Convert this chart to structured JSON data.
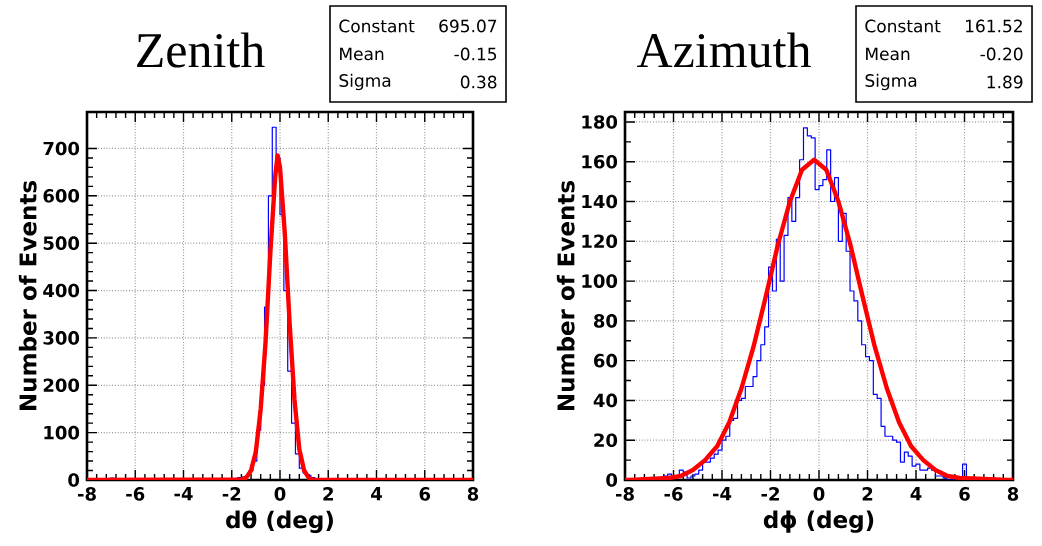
{
  "chart_data": [
    {
      "type": "histogram",
      "title": "Zenith",
      "xlabel": "dθ (deg)",
      "ylabel": "Number of Events",
      "bins": [
        -8,
        -7.84,
        -7.68,
        -7.52,
        -7.36,
        -7.2,
        -7.04,
        -6.88,
        -6.72,
        -6.56,
        -6.4,
        -6.24,
        -6.08,
        -5.92,
        -5.76,
        -5.6,
        -5.44,
        -5.28,
        -5.12,
        -4.96,
        -4.8,
        -4.64,
        -4.48,
        -4.32,
        -4.16,
        -4,
        -3.84,
        -3.68,
        -3.52,
        -3.36,
        -3.2,
        -3.04,
        -2.88,
        -2.72,
        -2.56,
        -2.4,
        -2.24,
        -2.08,
        -1.92,
        -1.76,
        -1.6,
        -1.44,
        -1.28,
        -1.12,
        -0.96,
        -0.8,
        -0.64,
        -0.48,
        -0.32,
        -0.16,
        0,
        0.16,
        0.32,
        0.48,
        0.64,
        0.8,
        0.96,
        1.12,
        1.28,
        1.44,
        1.6,
        1.76,
        1.92,
        2.08,
        2.24,
        2.4,
        2.56,
        2.72,
        2.88,
        3.04,
        3.2,
        3.36,
        3.52,
        3.68,
        3.84,
        4,
        4.16,
        4.32,
        4.48,
        4.64,
        4.8,
        4.96,
        5.12,
        5.28,
        5.44,
        5.6,
        5.76,
        5.92,
        6.08,
        6.24,
        6.4,
        6.56,
        6.72,
        6.88,
        7.04,
        7.2,
        7.36,
        7.52,
        7.68,
        7.84,
        8
      ],
      "values": [
        0,
        0,
        0,
        0,
        0,
        0,
        4,
        0,
        0,
        0,
        0,
        0,
        0,
        0,
        0,
        0,
        0,
        0,
        0,
        0,
        0,
        0,
        0,
        0,
        0,
        0,
        0,
        0,
        0,
        0,
        0,
        0,
        0,
        0,
        0,
        0,
        0,
        0,
        3,
        5,
        6,
        8,
        20,
        40,
        105,
        200,
        365,
        600,
        745,
        680,
        560,
        400,
        230,
        120,
        55,
        25,
        15,
        10,
        5,
        2,
        0,
        0,
        0,
        0,
        0,
        0,
        0,
        0,
        0,
        0,
        0,
        0,
        0,
        0,
        0,
        0,
        0,
        0,
        0,
        0,
        0,
        0,
        0,
        0,
        0,
        0,
        0,
        0,
        0,
        0,
        0,
        0,
        0,
        0,
        0,
        0,
        0,
        0,
        0,
        0
      ],
      "color": "#0000ff",
      "series": [
        {
          "type": "line",
          "color": "#ff0000",
          "x": [
            -8,
            -1.6,
            -1.4,
            -1.2,
            -1.0,
            -0.8,
            -0.6,
            -0.4,
            -0.2,
            -0.1,
            0,
            0.2,
            0.4,
            0.6,
            0.8,
            1.0,
            1.2,
            1.4,
            8
          ],
          "values": [
            0,
            1,
            5,
            20,
            60,
            150,
            290,
            480,
            640,
            685,
            660,
            520,
            330,
            170,
            65,
            20,
            4,
            0,
            0
          ]
        }
      ],
      "xlim": [
        -8,
        8
      ],
      "ylim": [
        0,
        777
      ],
      "xticks": [
        -8,
        -6,
        -4,
        -2,
        0,
        2,
        4,
        6,
        8
      ],
      "yticks": [
        0,
        100,
        200,
        300,
        400,
        500,
        600,
        700
      ],
      "grid": true,
      "annotations": [
        "Constant",
        "695.07",
        "Mean",
        "-0.15",
        "Sigma",
        "0.38"
      ]
    },
    {
      "type": "histogram",
      "title": "Azimuth",
      "xlabel": "dϕ (deg)",
      "ylabel": "Number of Events",
      "bins": [
        -8,
        -7.84,
        -7.68,
        -7.52,
        -7.36,
        -7.2,
        -7.04,
        -6.88,
        -6.72,
        -6.56,
        -6.4,
        -6.24,
        -6.08,
        -5.92,
        -5.76,
        -5.6,
        -5.44,
        -5.28,
        -5.12,
        -4.96,
        -4.8,
        -4.64,
        -4.48,
        -4.32,
        -4.16,
        -4,
        -3.84,
        -3.68,
        -3.52,
        -3.36,
        -3.2,
        -3.04,
        -2.88,
        -2.72,
        -2.56,
        -2.4,
        -2.24,
        -2.08,
        -1.92,
        -1.76,
        -1.6,
        -1.44,
        -1.28,
        -1.12,
        -0.96,
        -0.8,
        -0.64,
        -0.48,
        -0.32,
        -0.16,
        0,
        0.16,
        0.32,
        0.48,
        0.64,
        0.8,
        0.96,
        1.12,
        1.28,
        1.44,
        1.6,
        1.76,
        1.92,
        2.08,
        2.24,
        2.4,
        2.56,
        2.72,
        2.88,
        3.04,
        3.2,
        3.36,
        3.52,
        3.68,
        3.84,
        4,
        4.16,
        4.32,
        4.48,
        4.64,
        4.8,
        4.96,
        5.12,
        5.28,
        5.44,
        5.6,
        5.76,
        5.92,
        6.08,
        6.24,
        6.4,
        6.56,
        6.72,
        6.88,
        7.04,
        7.2,
        7.36,
        7.52,
        7.68,
        7.84,
        8
      ],
      "values": [
        0,
        0,
        0,
        0,
        0,
        0,
        0,
        0,
        0,
        0,
        2,
        3,
        1,
        2,
        5,
        4,
        1,
        2,
        3,
        5,
        9,
        9,
        11,
        13,
        15,
        20,
        22,
        30,
        31,
        40,
        41,
        47,
        47,
        52,
        60,
        68,
        77,
        107,
        95,
        121,
        100,
        123,
        142,
        130,
        142,
        161,
        177,
        173,
        172,
        146,
        148,
        151,
        166,
        140,
        152,
        120,
        134,
        115,
        95,
        90,
        80,
        68,
        62,
        60,
        43,
        41,
        27,
        22,
        22,
        20,
        19,
        9,
        14,
        12,
        7,
        8,
        5,
        5,
        6,
        5,
        2,
        2,
        1,
        0,
        0,
        0,
        0,
        8,
        0,
        0,
        0,
        0,
        0,
        0,
        0,
        0,
        0,
        0,
        0,
        0
      ],
      "color": "#0000ff",
      "series": [
        {
          "type": "line",
          "color": "#ff0000",
          "x": [
            -8,
            -7.8,
            -6.2,
            -5.7,
            -5.2,
            -4.7,
            -4.2,
            -3.7,
            -3.2,
            -2.7,
            -2.2,
            -1.7,
            -1.2,
            -0.7,
            -0.2,
            0.3,
            0.8,
            1.3,
            1.8,
            2.3,
            2.8,
            3.3,
            3.8,
            4.3,
            4.8,
            5.3,
            5.8,
            7.8,
            8
          ],
          "values": [
            0,
            0,
            1,
            2,
            5,
            10,
            17,
            29,
            46,
            67,
            92,
            118,
            140,
            156,
            161,
            156,
            140,
            118,
            92,
            67,
            46,
            29,
            17,
            10,
            5,
            2,
            1,
            0,
            0
          ]
        }
      ],
      "xlim": [
        -8,
        8
      ],
      "ylim": [
        0,
        185
      ],
      "xticks": [
        -8,
        -6,
        -4,
        -2,
        0,
        2,
        4,
        6,
        8
      ],
      "yticks": [
        0,
        20,
        40,
        60,
        80,
        100,
        120,
        140,
        160,
        180
      ],
      "grid": true,
      "annotations": [
        "Constant",
        "161.52",
        "Mean",
        "-0.20",
        "Sigma",
        "1.89"
      ]
    }
  ]
}
